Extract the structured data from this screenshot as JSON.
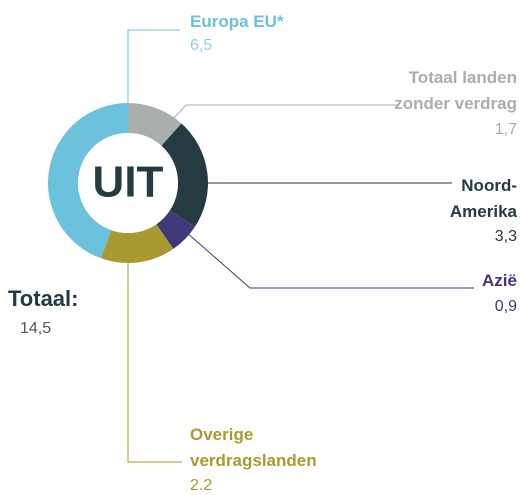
{
  "chart_data": {
    "type": "donut",
    "center_label": "UIT",
    "total_text": "Totaal:",
    "total": "14,5",
    "categories": [
      "Totaal landen\nzonder verdrag",
      "Noord-\nAmerika",
      "Azië",
      "Overige\nverdragslanden",
      "Europa EU*"
    ],
    "values": [
      1.7,
      3.3,
      0.9,
      2.2,
      6.5
    ],
    "value_labels": [
      "1,7",
      "3,3",
      "0,9",
      "2.2",
      "6,5"
    ],
    "colors": [
      "#a9aeae",
      "#263a42",
      "#3e3a7a",
      "#a99a30",
      "#6cc2dd"
    ]
  }
}
